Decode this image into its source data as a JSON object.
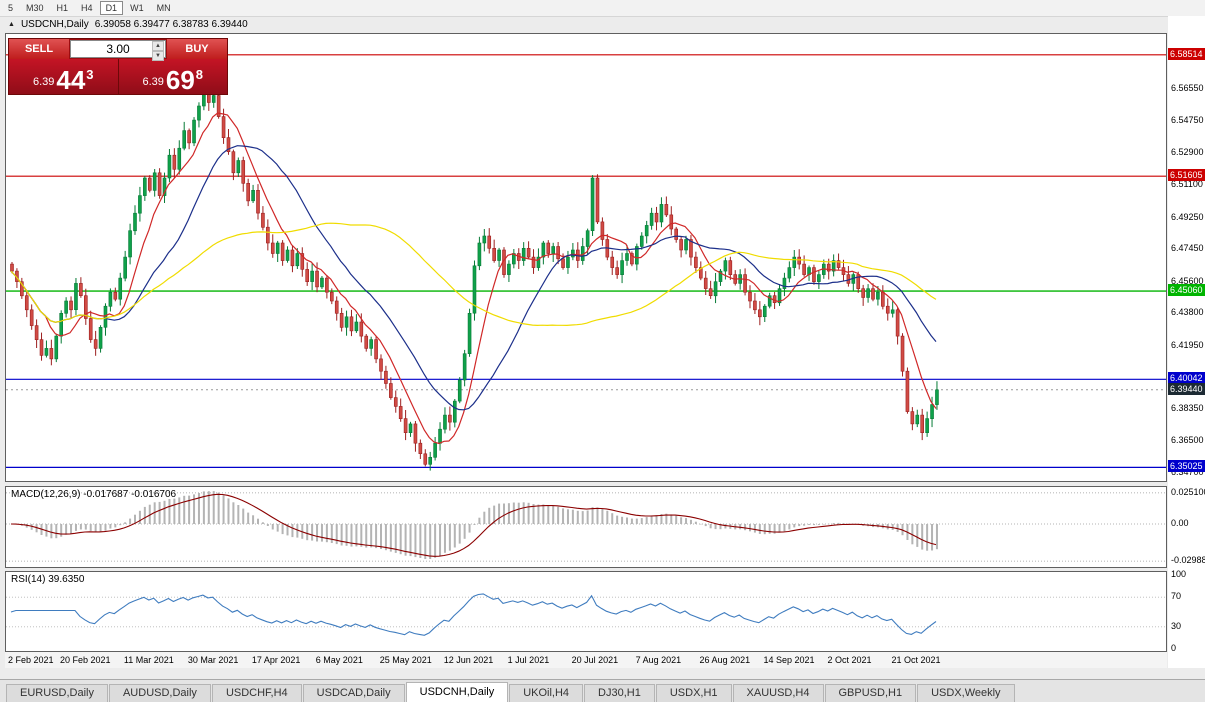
{
  "toolbar": {
    "periods": [
      {
        "label": "5",
        "active": false
      },
      {
        "label": "M30",
        "active": false
      },
      {
        "label": "H1",
        "active": false
      },
      {
        "label": "H4",
        "active": false
      },
      {
        "label": "D1",
        "active": true
      },
      {
        "label": "W1",
        "active": false
      },
      {
        "label": "MN",
        "active": false
      }
    ]
  },
  "chart_header": {
    "title": "USDCNH,Daily",
    "ohlc": "6.39058 6.39477 6.38783 6.39440"
  },
  "trade_panel": {
    "sell_label": "SELL",
    "buy_label": "BUY",
    "volume": "3.00",
    "bid_prefix": "6.39",
    "bid_big": "44",
    "bid_sup": "3",
    "ask_prefix": "6.39",
    "ask_big": "69",
    "ask_sup": "8"
  },
  "price_axis": {
    "ticks": [
      "6.56550",
      "6.54750",
      "6.52900",
      "6.51100",
      "6.49250",
      "6.47450",
      "6.45600",
      "6.43800",
      "6.41950",
      "6.40150",
      "6.38350",
      "6.36500",
      "6.34700"
    ]
  },
  "macd_panel": {
    "label": "MACD(12,26,9) -0.017687 -0.016706",
    "axis": [
      "0.025100",
      "0.00",
      "-0.029880"
    ]
  },
  "rsi_panel": {
    "label": "RSI(14) 39.6350",
    "axis": [
      "100",
      "70",
      "30",
      "0"
    ]
  },
  "date_axis": [
    "2 Feb 2021",
    "20 Feb 2021",
    "11 Mar 2021",
    "30 Mar 2021",
    "17 Apr 2021",
    "6 May 2021",
    "25 May 2021",
    "12 Jun 2021",
    "1 Jul 2021",
    "20 Jul 2021",
    "7 Aug 2021",
    "26 Aug 2021",
    "14 Sep 2021",
    "2 Oct 2021",
    "21 Oct 2021"
  ],
  "tabs": [
    {
      "label": "EURUSD,Daily",
      "active": false
    },
    {
      "label": "AUDUSD,Daily",
      "active": false
    },
    {
      "label": "USDCHF,H4",
      "active": false
    },
    {
      "label": "USDCAD,Daily",
      "active": false
    },
    {
      "label": "USDCNH,Daily",
      "active": true
    },
    {
      "label": "UKOil,H4",
      "active": false
    },
    {
      "label": "DJ30,H1",
      "active": false
    },
    {
      "label": "USDX,H1",
      "active": false
    },
    {
      "label": "XAUUSD,H4",
      "active": false
    },
    {
      "label": "GBPUSD,H1",
      "active": false
    },
    {
      "label": "USDX,Weekly",
      "active": false
    }
  ],
  "chart_data": {
    "type": "candlestick",
    "symbol": "USDCNH",
    "timeframe": "Daily",
    "title": "USDCNH,Daily",
    "ohlc_display": {
      "open": "6.39058",
      "high": "6.39477",
      "low": "6.38783",
      "close": "6.39440"
    },
    "ylim": [
      6.3425,
      6.597
    ],
    "x_labels": [
      "2 Feb 2021",
      "20 Feb 2021",
      "11 Mar 2021",
      "30 Mar 2021",
      "17 Apr 2021",
      "6 May 2021",
      "25 May 2021",
      "12 Jun 2021",
      "1 Jul 2021",
      "20 Jul 2021",
      "7 Aug 2021",
      "26 Aug 2021",
      "14 Sep 2021",
      "2 Oct 2021",
      "21 Oct 2021"
    ],
    "x_label_step": 13,
    "closes": [
      6.462,
      6.456,
      6.448,
      6.44,
      6.431,
      6.423,
      6.414,
      6.418,
      6.412,
      6.425,
      6.438,
      6.445,
      6.44,
      6.455,
      6.448,
      6.435,
      6.423,
      6.418,
      6.43,
      6.442,
      6.45,
      6.446,
      6.458,
      6.47,
      6.485,
      6.495,
      6.505,
      6.515,
      6.508,
      6.518,
      6.505,
      6.515,
      6.528,
      6.52,
      6.532,
      6.542,
      6.535,
      6.548,
      6.556,
      6.565,
      6.558,
      6.562,
      6.55,
      6.538,
      6.53,
      6.518,
      6.525,
      6.512,
      6.502,
      6.508,
      6.495,
      6.487,
      6.478,
      6.472,
      6.478,
      6.468,
      6.474,
      6.465,
      6.472,
      6.463,
      6.456,
      6.462,
      6.453,
      6.458,
      6.45,
      6.445,
      6.438,
      6.43,
      6.436,
      6.428,
      6.433,
      6.425,
      6.418,
      6.423,
      6.412,
      6.405,
      6.398,
      6.39,
      6.385,
      6.378,
      6.37,
      6.375,
      6.364,
      6.358,
      6.352,
      6.356,
      6.364,
      6.372,
      6.38,
      6.376,
      6.388,
      6.4,
      6.415,
      6.438,
      6.465,
      6.478,
      6.482,
      6.475,
      6.468,
      6.474,
      6.46,
      6.466,
      6.472,
      6.468,
      6.475,
      6.47,
      6.464,
      6.47,
      6.478,
      6.472,
      6.476,
      6.469,
      6.464,
      6.47,
      6.474,
      6.468,
      6.476,
      6.485,
      6.515,
      6.49,
      6.48,
      6.47,
      6.464,
      6.46,
      6.468,
      6.472,
      6.466,
      6.476,
      6.482,
      6.488,
      6.495,
      6.49,
      6.5,
      6.494,
      6.486,
      6.48,
      6.474,
      6.48,
      6.47,
      6.464,
      6.458,
      6.452,
      6.448,
      6.456,
      6.462,
      6.468,
      6.46,
      6.455,
      6.46,
      6.45,
      6.445,
      6.44,
      6.436,
      6.442,
      6.448,
      6.444,
      6.452,
      6.458,
      6.464,
      6.47,
      6.466,
      6.46,
      6.464,
      6.456,
      6.46,
      6.466,
      6.462,
      6.468,
      6.464,
      6.46,
      6.455,
      6.46,
      6.452,
      6.447,
      6.452,
      6.446,
      6.45,
      6.442,
      6.438,
      6.44,
      6.425,
      6.405,
      6.382,
      6.375,
      6.38,
      6.37,
      6.378,
      6.386,
      6.3944
    ],
    "levels": [
      {
        "label": "6.58514",
        "price": 6.58514,
        "color": "#cc0000"
      },
      {
        "label": "6.51605",
        "price": 6.51605,
        "color": "#cc0000"
      },
      {
        "label": "6.45060",
        "price": 6.4506,
        "color": "#00b400"
      },
      {
        "label": "6.40042",
        "price": 6.40042,
        "color": "#0000cc"
      },
      {
        "label": "6.35025",
        "price": 6.35025,
        "color": "#0000cc"
      }
    ],
    "current_price": {
      "label": "6.39440",
      "price": 6.3944,
      "color": "#1c2a33"
    },
    "moving_averages": [
      {
        "period": 8,
        "color": "#d02828"
      },
      {
        "period": 20,
        "color": "#1c2f8a"
      },
      {
        "period": 55,
        "color": "#f0dc00"
      }
    ],
    "indicators": [
      {
        "name": "MACD",
        "params": "12,26,9",
        "values": [
          -0.017687,
          -0.016706
        ],
        "range": [
          -0.02988,
          0.0251
        ]
      },
      {
        "name": "RSI",
        "params": "14",
        "value": 39.635,
        "levels": [
          30,
          70
        ],
        "range": [
          0,
          100
        ]
      }
    ]
  }
}
